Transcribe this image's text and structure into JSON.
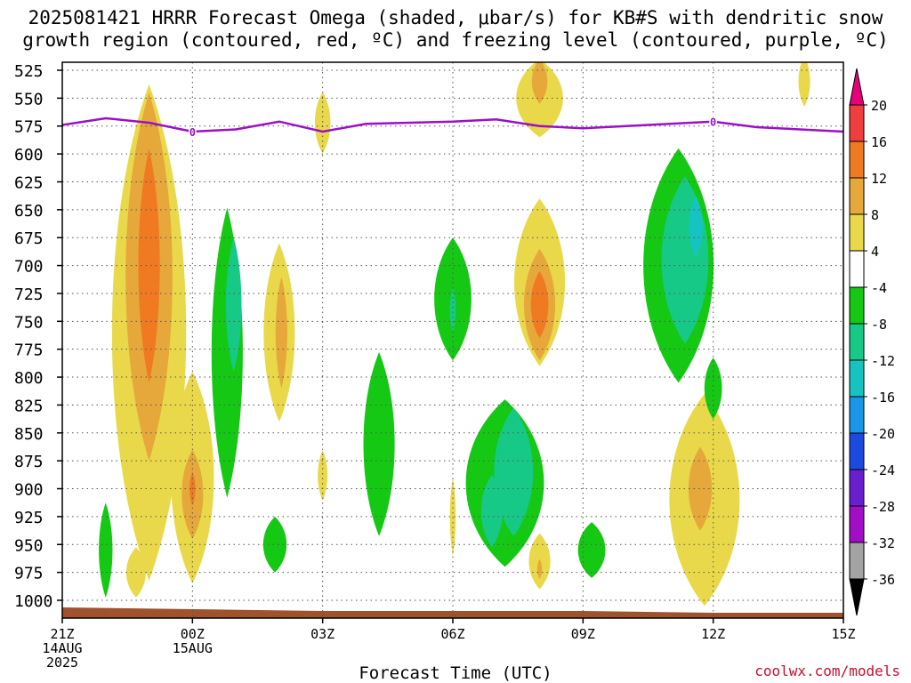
{
  "title": {
    "line1": "2025081421 HRRR Forecast Omega (shaded, μbar/s) for KB#S with dendritic snow",
    "line2": "growth region (contoured, red, ºC) and freezing level (contoured, purple, ºC)"
  },
  "footer": {
    "xlabel": "Forecast Time (UTC)",
    "credit": "coolwx.com/models"
  },
  "chart_data": {
    "type": "contour",
    "title": "2025081421 HRRR Forecast Omega (shaded, μbar/s) for KB#S with dendritic snow growth region (contoured, red, ºC) and freezing level (contoured, purple, ºC)",
    "xlabel": "Forecast Time (UTC)",
    "ylabel": "",
    "y_axis": {
      "scale": "pressure",
      "reversed": true,
      "ylim": [
        1012,
        520
      ],
      "ticks": [
        "525",
        "550",
        "575",
        "600",
        "625",
        "650",
        "675",
        "700",
        "725",
        "750",
        "775",
        "800",
        "825",
        "850",
        "875",
        "900",
        "925",
        "950",
        "975",
        "1000"
      ]
    },
    "x_axis": {
      "xlim": [
        0,
        18
      ],
      "ticks": [
        {
          "h": 0,
          "label": "21Z",
          "sub1": "14AUG",
          "sub2": "2025"
        },
        {
          "h": 3,
          "label": "00Z",
          "sub1": "15AUG",
          "sub2": ""
        },
        {
          "h": 6,
          "label": "03Z",
          "sub1": "",
          "sub2": ""
        },
        {
          "h": 9,
          "label": "06Z",
          "sub1": "",
          "sub2": ""
        },
        {
          "h": 12,
          "label": "09Z",
          "sub1": "",
          "sub2": ""
        },
        {
          "h": 15,
          "label": "12Z",
          "sub1": "",
          "sub2": ""
        },
        {
          "h": 18,
          "label": "15Z",
          "sub1": "",
          "sub2": ""
        }
      ]
    },
    "grid": true,
    "colorbar": {
      "labels": [
        "20",
        "16",
        "12",
        "8",
        "4",
        "-4",
        "-8",
        "-12",
        "-16",
        "-20",
        "-24",
        "-28",
        "-32",
        "-36"
      ],
      "colors": {
        "c20": "#e8007a",
        "c16": "#f03e3e",
        "c12": "#f07a22",
        "c8": "#e6a83a",
        "c4": "#e9d94a",
        "white": "#ffffff",
        "n4": "#14c814",
        "n8": "#17c987",
        "n12": "#15c4c0",
        "n16": "#1a96e8",
        "n20": "#1c4ae0",
        "n24": "#6a1fcf",
        "n28": "#a10ec6",
        "n32": "#a3a3a3",
        "n36": "#000000"
      }
    },
    "freezing_level": {
      "color": "#9b10c8",
      "label": "0",
      "points": [
        [
          0,
          574
        ],
        [
          1,
          568
        ],
        [
          2,
          572
        ],
        [
          3,
          580
        ],
        [
          4,
          578
        ],
        [
          5,
          571
        ],
        [
          6,
          580
        ],
        [
          7,
          573
        ],
        [
          8,
          572
        ],
        [
          9,
          571
        ],
        [
          10,
          569
        ],
        [
          11,
          575
        ],
        [
          12,
          577
        ],
        [
          13,
          575
        ],
        [
          14,
          573
        ],
        [
          15,
          571
        ],
        [
          16,
          576
        ],
        [
          17,
          578
        ],
        [
          18,
          580
        ]
      ],
      "labels_at": [
        [
          3,
          580
        ],
        [
          15,
          571
        ]
      ]
    },
    "omega_regions": [
      {
        "level": "c4",
        "center": [
          2.0,
          760
        ],
        "w": 1.9,
        "p": 445
      },
      {
        "level": "c8",
        "center": [
          2.0,
          710
        ],
        "w": 1.2,
        "p": 330
      },
      {
        "level": "c12",
        "center": [
          2.0,
          700
        ],
        "w": 0.55,
        "p": 210
      },
      {
        "level": "c4",
        "center": [
          3.0,
          890
        ],
        "w": 1.1,
        "p": 190
      },
      {
        "level": "c8",
        "center": [
          3.0,
          905
        ],
        "w": 0.55,
        "p": 80
      },
      {
        "level": "c12",
        "center": [
          3.0,
          900
        ],
        "w": 0.15,
        "p": 30
      },
      {
        "level": "c4",
        "center": [
          1.7,
          975
        ],
        "w": 0.5,
        "p": 45
      },
      {
        "level": "n4",
        "center": [
          1.0,
          955
        ],
        "w": 0.35,
        "p": 85
      },
      {
        "level": "n4",
        "center": [
          3.8,
          778
        ],
        "w": 0.8,
        "p": 260
      },
      {
        "level": "n8",
        "center": [
          3.95,
          735
        ],
        "w": 0.4,
        "p": 120
      },
      {
        "level": "c4",
        "center": [
          5.0,
          760
        ],
        "w": 0.8,
        "p": 160
      },
      {
        "level": "c8",
        "center": [
          5.05,
          760
        ],
        "w": 0.3,
        "p": 100
      },
      {
        "level": "n4",
        "center": [
          4.9,
          950
        ],
        "w": 0.6,
        "p": 50
      },
      {
        "level": "c4",
        "center": [
          6.0,
          572
        ],
        "w": 0.4,
        "p": 55
      },
      {
        "level": "c4",
        "center": [
          6.0,
          888
        ],
        "w": 0.25,
        "p": 45
      },
      {
        "level": "n4",
        "center": [
          7.3,
          860
        ],
        "w": 0.8,
        "p": 165
      },
      {
        "level": "n4",
        "center": [
          9.0,
          730
        ],
        "w": 0.95,
        "p": 110
      },
      {
        "level": "n8",
        "center": [
          9.0,
          740
        ],
        "w": 0.15,
        "p": 40
      },
      {
        "level": "c4",
        "center": [
          9.0,
          925
        ],
        "w": 0.15,
        "p": 70
      },
      {
        "level": "c4",
        "center": [
          11.0,
          715
        ],
        "w": 1.3,
        "p": 150
      },
      {
        "level": "c8",
        "center": [
          11.0,
          735
        ],
        "w": 0.8,
        "p": 100
      },
      {
        "level": "c12",
        "center": [
          11.0,
          735
        ],
        "w": 0.45,
        "p": 60
      },
      {
        "level": "c4",
        "center": [
          11.0,
          550
        ],
        "w": 1.2,
        "p": 70
      },
      {
        "level": "c8",
        "center": [
          11.0,
          535
        ],
        "w": 0.4,
        "p": 40
      },
      {
        "level": "n4",
        "center": [
          10.2,
          895
        ],
        "w": 2.0,
        "p": 150
      },
      {
        "level": "n8",
        "center": [
          10.4,
          885
        ],
        "w": 1.0,
        "p": 115
      },
      {
        "level": "n8",
        "center": [
          9.9,
          920
        ],
        "w": 0.55,
        "p": 65
      },
      {
        "level": "c4",
        "center": [
          11.0,
          965
        ],
        "w": 0.55,
        "p": 50
      },
      {
        "level": "c8",
        "center": [
          11.0,
          972
        ],
        "w": 0.12,
        "p": 18
      },
      {
        "level": "n4",
        "center": [
          12.2,
          955
        ],
        "w": 0.7,
        "p": 50
      },
      {
        "level": "n4",
        "center": [
          14.2,
          700
        ],
        "w": 1.8,
        "p": 210
      },
      {
        "level": "n8",
        "center": [
          14.35,
          695
        ],
        "w": 1.2,
        "p": 150
      },
      {
        "level": "n12",
        "center": [
          14.6,
          665
        ],
        "w": 0.35,
        "p": 55
      },
      {
        "level": "c4",
        "center": [
          14.8,
          910
        ],
        "w": 1.8,
        "p": 190
      },
      {
        "level": "c8",
        "center": [
          14.7,
          900
        ],
        "w": 0.6,
        "p": 75
      },
      {
        "level": "n4",
        "center": [
          15.0,
          810
        ],
        "w": 0.45,
        "p": 55
      },
      {
        "level": "c4",
        "center": [
          17.1,
          535
        ],
        "w": 0.3,
        "p": 45
      }
    ]
  }
}
